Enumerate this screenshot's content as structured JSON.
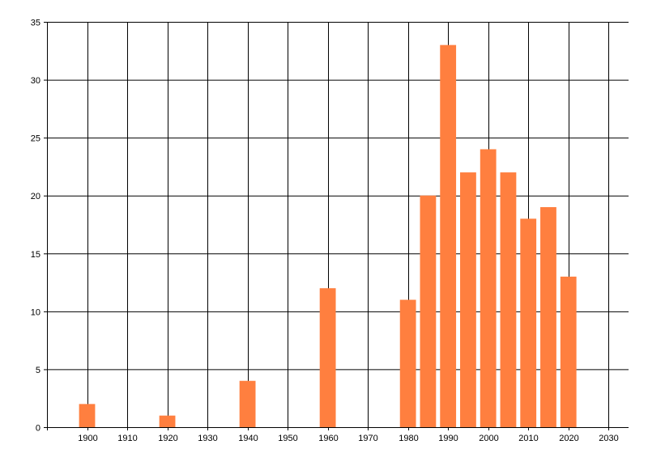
{
  "chart_data": {
    "type": "bar",
    "title": "",
    "xlabel": "",
    "ylabel": "",
    "x": [
      1900,
      1920,
      1940,
      1960,
      1980,
      1985,
      1990,
      1995,
      2000,
      2005,
      2010,
      2015,
      2020
    ],
    "values": [
      2,
      1,
      4,
      12,
      11,
      20,
      33,
      22,
      24,
      22,
      18,
      19,
      13
    ],
    "bar_width_years": 4,
    "xlim": [
      1890,
      2035
    ],
    "ylim": [
      0,
      35
    ],
    "x_ticks": [
      1900,
      1910,
      1920,
      1930,
      1940,
      1950,
      1960,
      1970,
      1980,
      1990,
      2000,
      2010,
      2020,
      2030
    ],
    "y_ticks": [
      0,
      5,
      10,
      15,
      20,
      25,
      30,
      35
    ],
    "grid": true,
    "bar_color": "#FF7F3F",
    "grid_color": "#000000"
  }
}
